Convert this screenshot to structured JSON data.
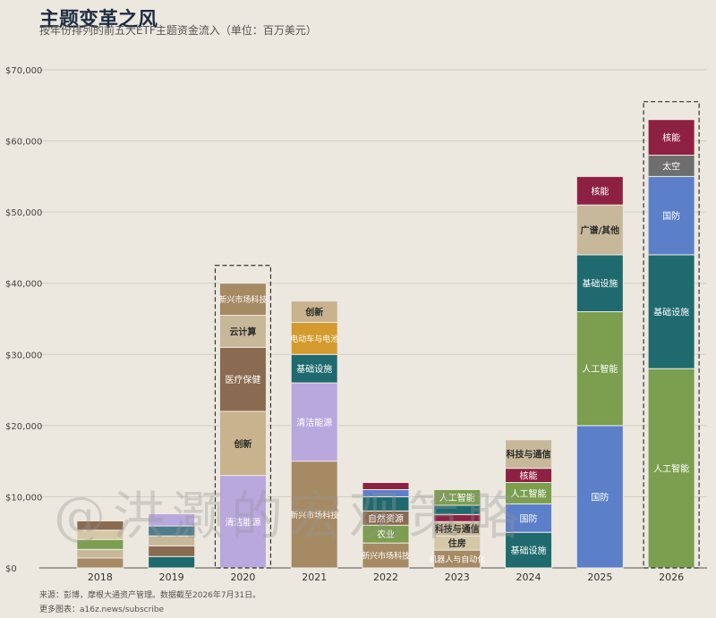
{
  "header": {
    "title": "主题变革之风",
    "subtitle": "按年份排列的前五大ETF主题资金流入（单位：百万美元）"
  },
  "footer": {
    "source": "来源：彭博，摩根大通资产管理。数据截至2026年7月31日。",
    "more": "更多图表：a16z.news/subscribe"
  },
  "watermark": "@洪灏的宏观策略",
  "chart_data": {
    "type": "bar",
    "stacked": true,
    "title": "主题变革之风",
    "subtitle": "按年份排列的前五大ETF主题资金流入（单位：百万美元）",
    "ylim": [
      0,
      70000
    ],
    "yticks": [
      0,
      10000,
      20000,
      30000,
      40000,
      50000,
      60000,
      70000
    ],
    "ytick_labels": [
      "$0",
      "$10,000",
      "$20,000",
      "$30,000",
      "$40,000",
      "$50,000",
      "$60,000",
      "$70,000"
    ],
    "grid": true,
    "highlighted": [
      "2020",
      "2026"
    ],
    "categories": [
      "2018",
      "2019",
      "2020",
      "2021",
      "2022",
      "2023",
      "2024",
      "2025",
      "2026"
    ],
    "stacks": [
      {
        "x": "2018",
        "segments": [
          {
            "label": "",
            "value": 1400,
            "color": "#a68a64"
          },
          {
            "label": "",
            "value": 1200,
            "color": "#c8b89a"
          },
          {
            "label": "",
            "value": 1400,
            "color": "#7b9e4f"
          },
          {
            "label": "",
            "value": 1300,
            "color": "#d6c7a8"
          },
          {
            "label": "",
            "value": 1300,
            "color": "#8a6a50"
          }
        ]
      },
      {
        "x": "2019",
        "segments": [
          {
            "label": "",
            "value": 1600,
            "color": "#1f6a6e"
          },
          {
            "label": "",
            "value": 1500,
            "color": "#8a6a50"
          },
          {
            "label": "",
            "value": 1400,
            "color": "#c8b89a"
          },
          {
            "label": "",
            "value": 1400,
            "color": "#4f7d8c"
          },
          {
            "label": "",
            "value": 1700,
            "color": "#b9a8de"
          }
        ]
      },
      {
        "x": "2020",
        "segments": [
          {
            "label": "清洁能源",
            "value": 13000,
            "color": "#b9a8de"
          },
          {
            "label": "创新",
            "value": 9000,
            "color": "#c8b38e"
          },
          {
            "label": "医疗保健",
            "value": 9000,
            "color": "#8a6a50"
          },
          {
            "label": "云计算",
            "value": 4500,
            "color": "#c8b89a"
          },
          {
            "label": "新兴市场科技",
            "value": 4500,
            "color": "#a68a64"
          }
        ]
      },
      {
        "x": "2021",
        "segments": [
          {
            "label": "新兴市场科技",
            "value": 15000,
            "color": "#a68a64"
          },
          {
            "label": "清洁能源",
            "value": 11000,
            "color": "#b9a8de"
          },
          {
            "label": "基础设施",
            "value": 4000,
            "color": "#1f6a6e"
          },
          {
            "label": "电动车与电池",
            "value": 4500,
            "color": "#d59a2e"
          },
          {
            "label": "创新",
            "value": 3000,
            "color": "#c8b38e"
          }
        ]
      },
      {
        "x": "2022",
        "segments": [
          {
            "label": "新兴市场科技",
            "value": 3500,
            "color": "#a68a64"
          },
          {
            "label": "农业",
            "value": 2500,
            "color": "#7b9e4f"
          },
          {
            "label": "自然资源",
            "value": 2000,
            "color": "#8a6a50"
          },
          {
            "label": "",
            "value": 2000,
            "color": "#1f6a6e"
          },
          {
            "label": "",
            "value": 1000,
            "color": "#5b7fc9"
          },
          {
            "label": "",
            "value": 1000,
            "color": "#8e2143"
          }
        ]
      },
      {
        "x": "2023",
        "segments": [
          {
            "label": "机器人与自动化",
            "value": 2500,
            "color": "#a68a64"
          },
          {
            "label": "住房",
            "value": 2000,
            "color": "#d6c7a8"
          },
          {
            "label": "科技与通信",
            "value": 2000,
            "color": "#c8b89a"
          },
          {
            "label": "",
            "value": 1000,
            "color": "#8e2143"
          },
          {
            "label": "",
            "value": 1300,
            "color": "#1f6a6e"
          },
          {
            "label": "人工智能",
            "value": 2200,
            "color": "#7b9e4f"
          }
        ]
      },
      {
        "x": "2024",
        "segments": [
          {
            "label": "基础设施",
            "value": 5000,
            "color": "#1f6a6e"
          },
          {
            "label": "国防",
            "value": 4000,
            "color": "#5b7fc9"
          },
          {
            "label": "人工智能",
            "value": 3000,
            "color": "#7b9e4f"
          },
          {
            "label": "核能",
            "value": 2000,
            "color": "#8e2143"
          },
          {
            "label": "科技与通信",
            "value": 4000,
            "color": "#c8b89a"
          }
        ]
      },
      {
        "x": "2025",
        "segments": [
          {
            "label": "国防",
            "value": 20000,
            "color": "#5b7fc9"
          },
          {
            "label": "人工智能",
            "value": 16000,
            "color": "#7b9e4f"
          },
          {
            "label": "基础设施",
            "value": 8000,
            "color": "#1f6a6e"
          },
          {
            "label": "广谱/其他",
            "value": 7000,
            "color": "#c8b89a"
          },
          {
            "label": "核能",
            "value": 4000,
            "color": "#8e2143"
          }
        ]
      },
      {
        "x": "2026",
        "segments": [
          {
            "label": "人工智能",
            "value": 28000,
            "color": "#7b9e4f"
          },
          {
            "label": "基础设施",
            "value": 16000,
            "color": "#1f6a6e"
          },
          {
            "label": "国防",
            "value": 11000,
            "color": "#5b7fc9"
          },
          {
            "label": "太空",
            "value": 3000,
            "color": "#6e6e6e"
          },
          {
            "label": "核能",
            "value": 5000,
            "color": "#8e2143"
          }
        ]
      }
    ]
  }
}
